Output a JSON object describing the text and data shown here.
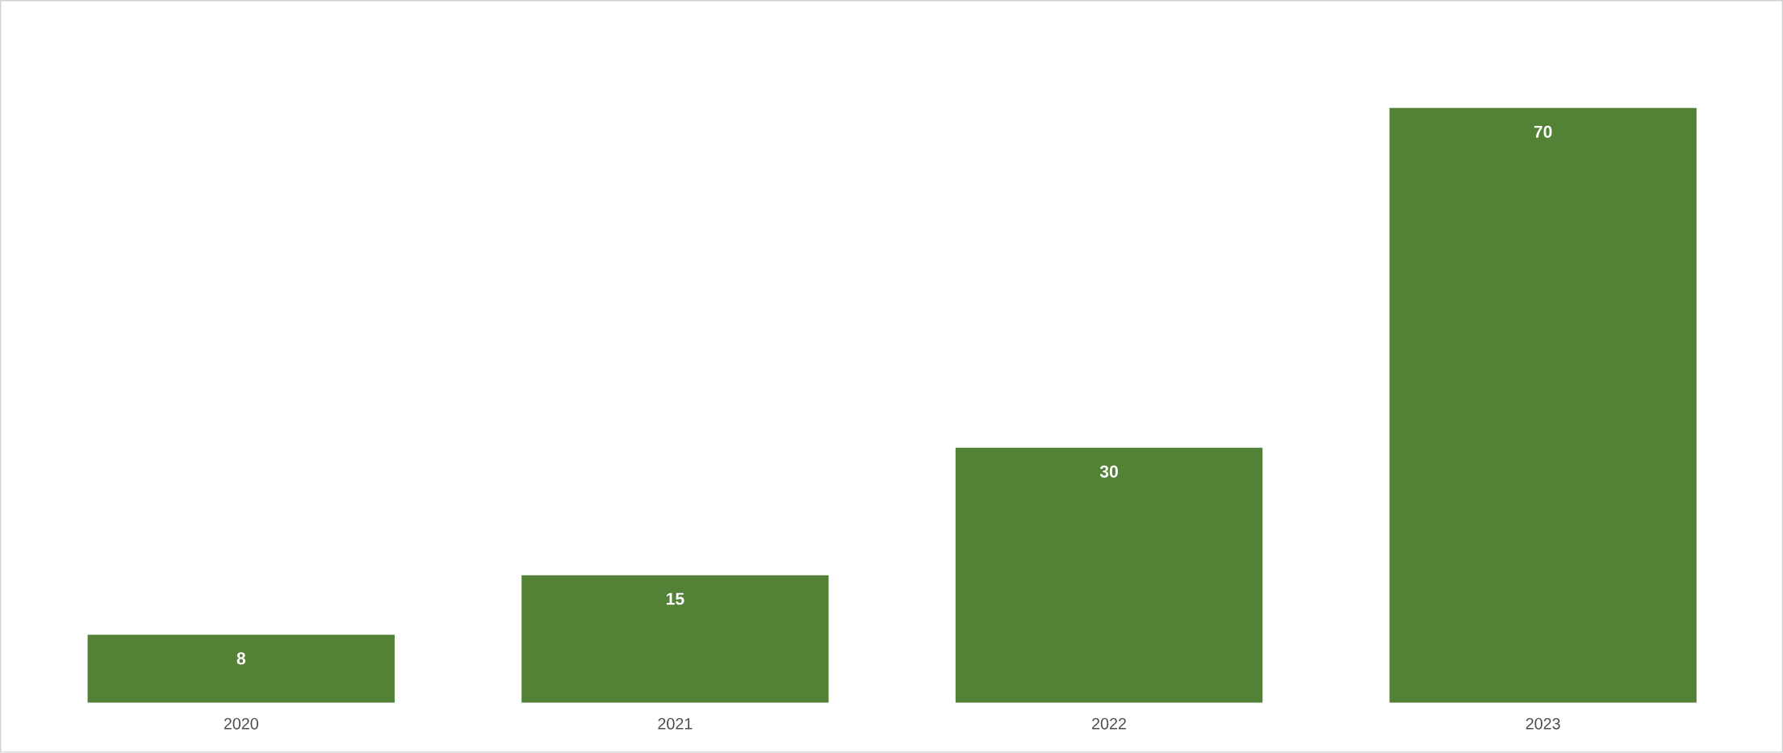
{
  "chart_data": {
    "type": "bar",
    "categories": [
      "2020",
      "2021",
      "2022",
      "2023"
    ],
    "values": [
      8,
      15,
      30,
      70
    ],
    "color": "#538135",
    "data_labels": true
  }
}
